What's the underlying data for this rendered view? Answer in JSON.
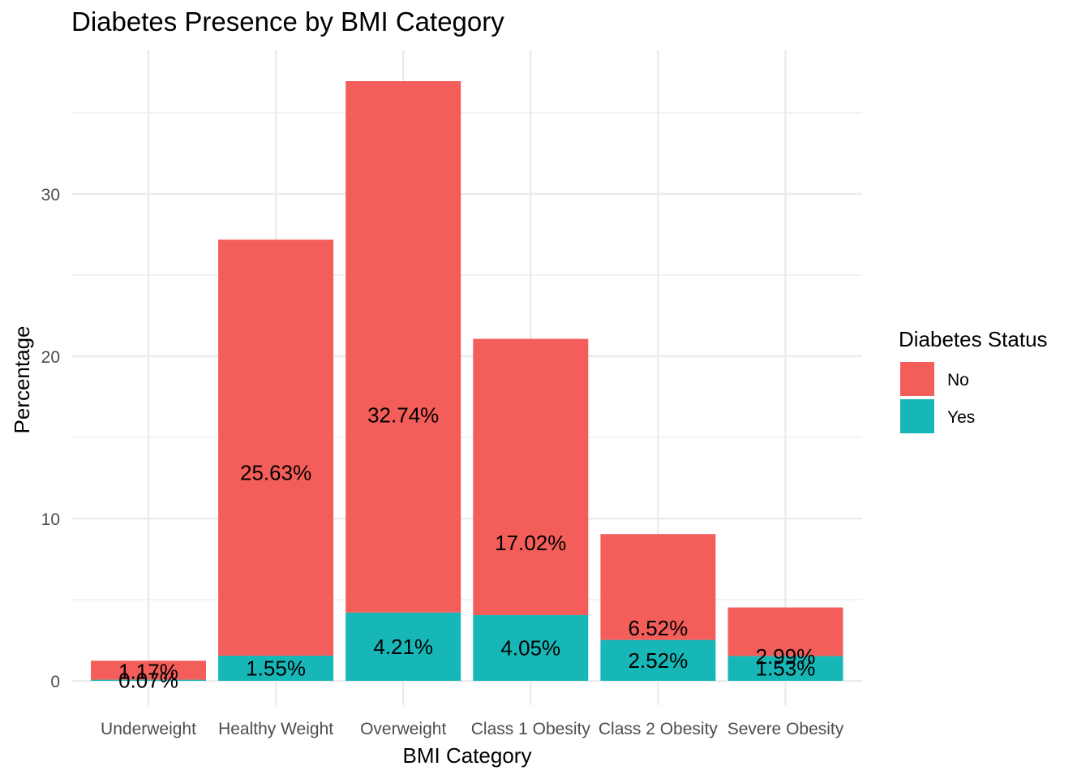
{
  "chart_data": {
    "type": "bar",
    "stacked": true,
    "title": "Diabetes Presence by BMI Category",
    "xlabel": "BMI Category",
    "ylabel": "Percentage",
    "categories": [
      "Underweight",
      "Healthy Weight",
      "Overweight",
      "Class 1 Obesity",
      "Class 2 Obesity",
      "Severe Obesity"
    ],
    "series": [
      {
        "name": "No",
        "values": [
          1.17,
          25.63,
          32.74,
          17.02,
          6.52,
          2.99
        ],
        "labels": [
          "1.17%",
          "25.63%",
          "32.74%",
          "17.02%",
          "6.52%",
          "2.99%"
        ],
        "color": "#F35E5A"
      },
      {
        "name": "Yes",
        "values": [
          0.07,
          1.55,
          4.21,
          4.05,
          2.52,
          1.53
        ],
        "labels": [
          "0.07%",
          "1.55%",
          "4.21%",
          "4.05%",
          "2.52%",
          "1.53%"
        ],
        "color": "#17B7B8"
      }
    ],
    "yticks": [
      0,
      10,
      20,
      30
    ],
    "ytick_labels": [
      "0",
      "10",
      "20",
      "30"
    ],
    "ylim": [
      -1.5,
      38.5
    ],
    "legend": {
      "title": "Diabetes Status",
      "position": "right"
    },
    "grid": true,
    "grid_color": "#EBEBEB"
  }
}
